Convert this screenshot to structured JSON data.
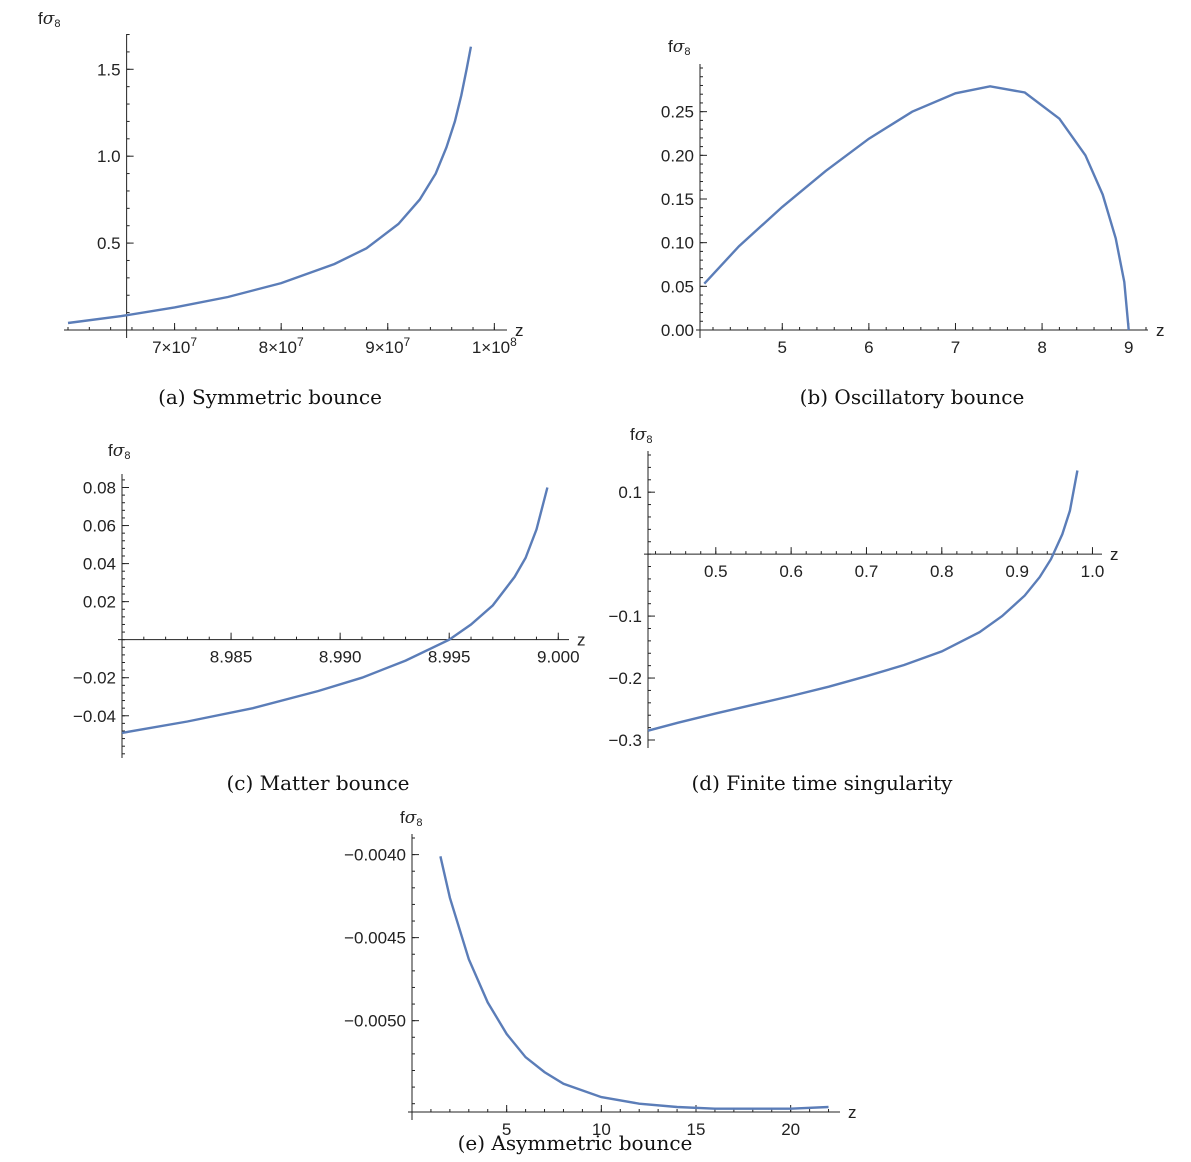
{
  "chart_data": [
    {
      "id": "a",
      "type": "line",
      "caption": "(a) Symmetric bounce",
      "ylabel_main": "f",
      "ylabel_sigma": "σ",
      "ylabel_sub": "8",
      "xlabel": "z",
      "xlim": [
        60000000,
        101000000
      ],
      "ylim": [
        0,
        1.68
      ],
      "x_axis_y": 0,
      "y_axis_x": 65500000,
      "x_ticks": [
        {
          "v": 70000000,
          "label": "7×10",
          "exp": "7"
        },
        {
          "v": 80000000,
          "label": "8×10",
          "exp": "7"
        },
        {
          "v": 90000000,
          "label": "9×10",
          "exp": "7"
        },
        {
          "v": 100000000,
          "label": "1×10",
          "exp": "8"
        }
      ],
      "y_ticks": [
        {
          "v": 0.5,
          "label": "0.5"
        },
        {
          "v": 1.0,
          "label": "1.0"
        },
        {
          "v": 1.5,
          "label": "1.5"
        }
      ],
      "series": [
        {
          "x": [
            60000000,
            65000000,
            70000000,
            75000000,
            80000000,
            85000000,
            88000000,
            91000000,
            93000000,
            94500000,
            95500000,
            96300000,
            96900000,
            97400000,
            97800000
          ],
          "y": [
            0.04,
            0.08,
            0.13,
            0.19,
            0.27,
            0.38,
            0.47,
            0.61,
            0.75,
            0.9,
            1.05,
            1.2,
            1.35,
            1.5,
            1.63
          ]
        }
      ]
    },
    {
      "id": "b",
      "type": "line",
      "caption": "(b) Oscillatory bounce",
      "ylabel_main": "f",
      "ylabel_sigma": "σ",
      "ylabel_sub": "8",
      "xlabel": "z",
      "xlim": [
        4.05,
        9.2
      ],
      "ylim": [
        0,
        0.3
      ],
      "x_axis_y": 0,
      "y_axis_x": 4.05,
      "x_ticks": [
        {
          "v": 5,
          "label": "5"
        },
        {
          "v": 6,
          "label": "6"
        },
        {
          "v": 7,
          "label": "7"
        },
        {
          "v": 8,
          "label": "8"
        },
        {
          "v": 9,
          "label": "9"
        }
      ],
      "y_ticks": [
        {
          "v": 0.0,
          "label": "0.00"
        },
        {
          "v": 0.05,
          "label": "0.05"
        },
        {
          "v": 0.1,
          "label": "0.10"
        },
        {
          "v": 0.15,
          "label": "0.15"
        },
        {
          "v": 0.2,
          "label": "0.20"
        },
        {
          "v": 0.25,
          "label": "0.25"
        }
      ],
      "series": [
        {
          "x": [
            4.1,
            4.5,
            5.0,
            5.5,
            6.0,
            6.5,
            7.0,
            7.4,
            7.8,
            8.2,
            8.5,
            8.7,
            8.85,
            8.95,
            9.0
          ],
          "y": [
            0.053,
            0.096,
            0.141,
            0.182,
            0.219,
            0.25,
            0.271,
            0.279,
            0.272,
            0.242,
            0.2,
            0.155,
            0.105,
            0.055,
            0.0
          ]
        }
      ]
    },
    {
      "id": "c",
      "type": "line",
      "caption": "(c) Matter bounce",
      "ylabel_main": "f",
      "ylabel_sigma": "σ",
      "ylabel_sub": "8",
      "xlabel": "z",
      "xlim": [
        8.98,
        9.0004
      ],
      "ylim": [
        -0.058,
        0.085
      ],
      "x_axis_y": 0,
      "y_axis_x": 8.98,
      "x_ticks": [
        {
          "v": 8.985,
          "label": "8.985"
        },
        {
          "v": 8.99,
          "label": "8.990"
        },
        {
          "v": 8.995,
          "label": "8.995"
        },
        {
          "v": 9.0,
          "label": "9.000"
        }
      ],
      "y_ticks": [
        {
          "v": -0.04,
          "label": "−0.04"
        },
        {
          "v": -0.02,
          "label": "−0.02"
        },
        {
          "v": 0.02,
          "label": "0.02"
        },
        {
          "v": 0.04,
          "label": "0.04"
        },
        {
          "v": 0.06,
          "label": "0.06"
        },
        {
          "v": 0.08,
          "label": "0.08"
        }
      ],
      "series": [
        {
          "x": [
            8.98,
            8.983,
            8.986,
            8.989,
            8.991,
            8.993,
            8.995,
            8.996,
            8.997,
            8.998,
            8.9985,
            8.999,
            8.9995
          ],
          "y": [
            -0.049,
            -0.043,
            -0.036,
            -0.027,
            -0.02,
            -0.011,
            0.0,
            0.008,
            0.018,
            0.033,
            0.043,
            0.058,
            0.08
          ]
        }
      ]
    },
    {
      "id": "d",
      "type": "line",
      "caption": "(d) Finite time singularity",
      "ylabel_main": "f",
      "ylabel_sigma": "σ",
      "ylabel_sub": "8",
      "xlabel": "z",
      "xlim": [
        0.41,
        1.01
      ],
      "ylim": [
        -0.3,
        0.16
      ],
      "x_axis_y": 0,
      "y_axis_x": 0.41,
      "x_ticks": [
        {
          "v": 0.5,
          "label": "0.5"
        },
        {
          "v": 0.6,
          "label": "0.6"
        },
        {
          "v": 0.7,
          "label": "0.7"
        },
        {
          "v": 0.8,
          "label": "0.8"
        },
        {
          "v": 0.9,
          "label": "0.9"
        },
        {
          "v": 1.0,
          "label": "1.0"
        }
      ],
      "y_ticks": [
        {
          "v": -0.3,
          "label": "−0.3"
        },
        {
          "v": -0.2,
          "label": "−0.2"
        },
        {
          "v": -0.1,
          "label": "−0.1"
        },
        {
          "v": 0.1,
          "label": "0.1"
        }
      ],
      "series": [
        {
          "x": [
            0.41,
            0.45,
            0.5,
            0.55,
            0.6,
            0.65,
            0.7,
            0.75,
            0.8,
            0.85,
            0.88,
            0.91,
            0.93,
            0.945,
            0.96,
            0.97,
            0.98
          ],
          "y": [
            -0.285,
            -0.272,
            -0.257,
            -0.243,
            -0.229,
            -0.214,
            -0.197,
            -0.179,
            -0.157,
            -0.126,
            -0.1,
            -0.067,
            -0.037,
            -0.008,
            0.032,
            0.07,
            0.135
          ]
        }
      ]
    },
    {
      "id": "e",
      "type": "line",
      "caption": "(e) Asymmetric bounce",
      "ylabel_main": "f",
      "ylabel_sigma": "σ",
      "ylabel_sub": "8",
      "xlabel": "z",
      "xlim": [
        0,
        22.5
      ],
      "ylim": [
        -0.00555,
        -0.0039
      ],
      "x_axis_y": -0.00555,
      "y_axis_x": 0,
      "x_ticks": [
        {
          "v": 5,
          "label": "5"
        },
        {
          "v": 10,
          "label": "10"
        },
        {
          "v": 15,
          "label": "15"
        },
        {
          "v": 20,
          "label": "20"
        }
      ],
      "y_ticks": [
        {
          "v": -0.005,
          "label": "−0.0050"
        },
        {
          "v": -0.0045,
          "label": "−0.0045"
        },
        {
          "v": -0.004,
          "label": "−0.0040"
        }
      ],
      "series": [
        {
          "x": [
            1.5,
            2,
            3,
            4,
            5,
            6,
            7,
            8,
            10,
            12,
            14,
            16,
            18,
            20,
            22
          ],
          "y": [
            -0.00401,
            -0.00426,
            -0.00463,
            -0.00489,
            -0.00508,
            -0.00522,
            -0.00531,
            -0.00538,
            -0.00546,
            -0.0055,
            -0.00552,
            -0.00553,
            -0.00553,
            -0.00553,
            -0.00552
          ]
        }
      ]
    }
  ]
}
